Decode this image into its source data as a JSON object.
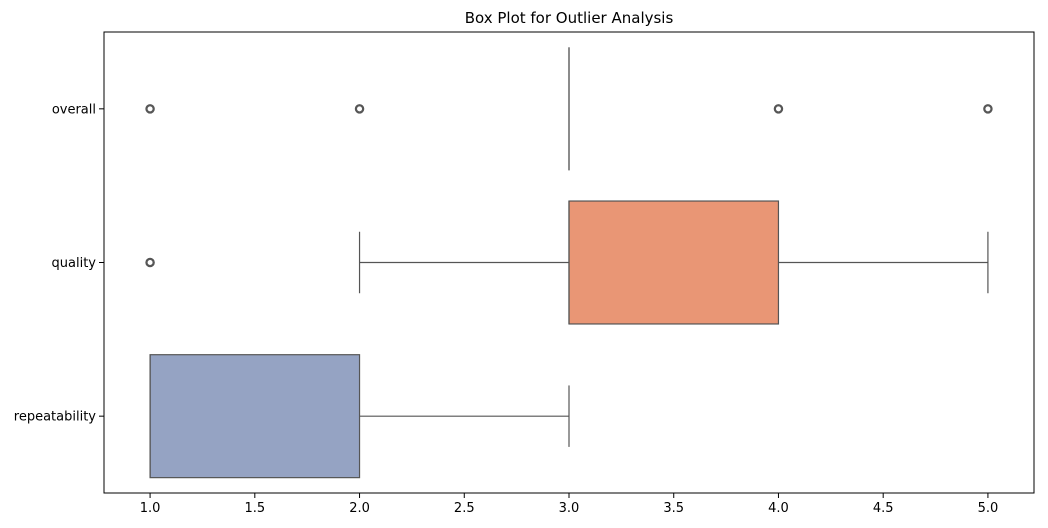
{
  "chart_data": {
    "type": "box",
    "orientation": "horizontal",
    "title": "Box Plot for Outlier Analysis",
    "xlabel": "",
    "ylabel": "",
    "xlim": [
      0.78,
      5.22
    ],
    "x_ticks": [
      1.0,
      1.5,
      2.0,
      2.5,
      3.0,
      3.5,
      4.0,
      4.5,
      5.0
    ],
    "x_tick_labels": [
      "1.0",
      "1.5",
      "2.0",
      "2.5",
      "3.0",
      "3.5",
      "4.0",
      "4.5",
      "5.0"
    ],
    "categories": [
      "overall",
      "quality",
      "repeatability"
    ],
    "grid": false,
    "series": [
      {
        "category": "overall",
        "whisker_low": 3.0,
        "q1": 3.0,
        "median": 3.0,
        "q3": 3.0,
        "whisker_high": 3.0,
        "outliers": [
          1.0,
          2.0,
          4.0,
          5.0
        ],
        "color": "#66c2a5"
      },
      {
        "category": "quality",
        "whisker_low": 2.0,
        "q1": 3.0,
        "median": 3.0,
        "q3": 4.0,
        "whisker_high": 5.0,
        "outliers": [
          1.0
        ],
        "color": "#e99675"
      },
      {
        "category": "repeatability",
        "whisker_low": 1.0,
        "q1": 1.0,
        "median": 1.0,
        "q3": 2.0,
        "whisker_high": 3.0,
        "outliers": [],
        "color": "#95a3c3"
      }
    ]
  }
}
